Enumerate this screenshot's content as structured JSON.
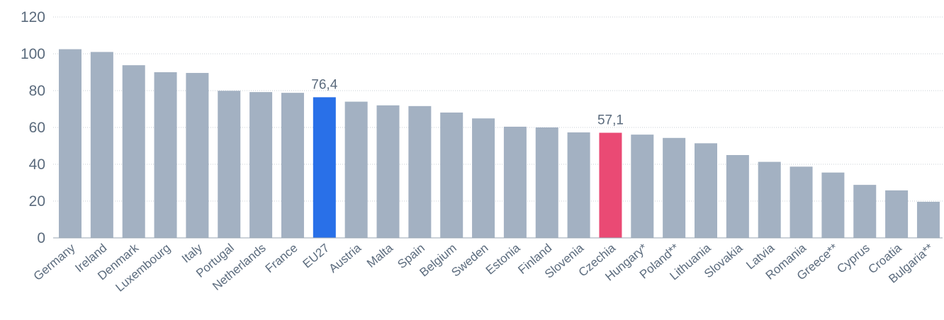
{
  "chart_data": {
    "type": "bar",
    "categories": [
      "Germany",
      "Ireland",
      "Denmark",
      "Luxembourg",
      "Italy",
      "Portugal",
      "Netherlands",
      "France",
      "EU27",
      "Austria",
      "Malta",
      "Spain",
      "Belgium",
      "Sweden",
      "Estonia",
      "Finland",
      "Slovenia",
      "Czechia",
      "Hungary*",
      "Poland**",
      "Lithuania",
      "Slovakia",
      "Latvia",
      "Romania",
      "Greece**",
      "Cyprus",
      "Croatia",
      "Bulgaria**"
    ],
    "values": [
      102.5,
      101,
      93.8,
      90,
      89.6,
      79.9,
      79.2,
      78.8,
      76.4,
      74,
      72,
      71.6,
      68.1,
      64.9,
      60.4,
      60,
      57.3,
      57.1,
      56.1,
      54.3,
      51.4,
      45,
      41.3,
      38.7,
      35.5,
      28.8,
      25.8,
      19.6
    ],
    "title": "",
    "xlabel": "",
    "ylabel": "",
    "ylim": [
      0,
      120
    ],
    "yticks": [
      "0",
      "20",
      "40",
      "60",
      "80",
      "100",
      "120"
    ],
    "grid": true,
    "colors": {
      "default": "#a3b1c2",
      "highlight_eu": "#2970e8",
      "highlight_cz": "#ea4a74"
    },
    "highlights": [
      {
        "category": "EU27",
        "color": "#2970e8",
        "label": "76,4"
      },
      {
        "category": "Czechia",
        "color": "#ea4a74",
        "label": "57,1"
      }
    ]
  }
}
